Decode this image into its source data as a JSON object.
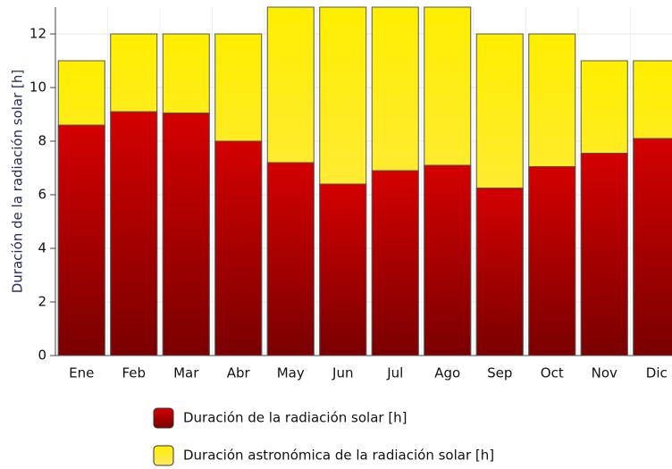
{
  "chart_data": {
    "type": "bar",
    "overlap": true,
    "y_label": "Duración de la radiación solar [h]",
    "categories": [
      "Ene",
      "Feb",
      "Mar",
      "Abr",
      "May",
      "Jun",
      "Jul",
      "Ago",
      "Sep",
      "Oct",
      "Nov",
      "Dic"
    ],
    "series": [
      {
        "name": "Duración de la radiación solar [h]",
        "color": "#d40000",
        "gradient_end": "#7a0000",
        "values": [
          8.6,
          9.1,
          9.05,
          8.0,
          7.2,
          6.4,
          6.9,
          7.1,
          6.25,
          7.05,
          7.55,
          8.1
        ]
      },
      {
        "name": "Duración astronómica de la radiación solar  [h]",
        "color": "#ffee00",
        "gradient_end": "#ffe866",
        "values": [
          11,
          12,
          12,
          12,
          13,
          13,
          13,
          13,
          12,
          12,
          11,
          11
        ]
      }
    ],
    "ylim": [
      0,
      13
    ],
    "yticks": [
      0,
      2,
      4,
      6,
      8,
      10,
      12
    ],
    "grid": true
  }
}
